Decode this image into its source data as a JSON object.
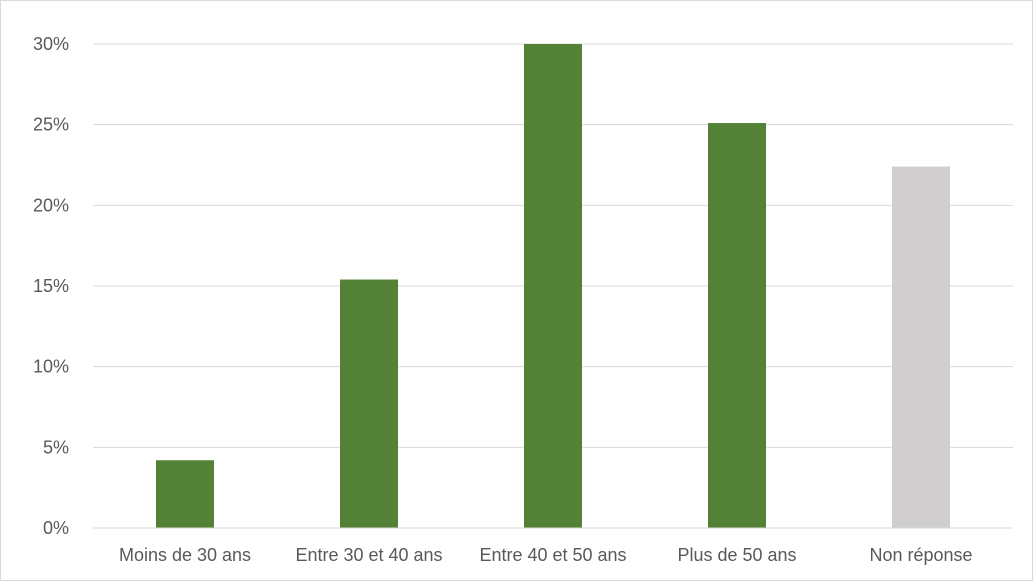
{
  "chart_data": {
    "type": "bar",
    "title": "",
    "xlabel": "",
    "ylabel": "",
    "categories": [
      "Moins de 30 ans",
      "Entre 30 et 40 ans",
      "Entre 40 et 50 ans",
      "Plus de 50 ans",
      "Non réponse"
    ],
    "values": [
      4.2,
      15.4,
      30.0,
      25.1,
      22.4
    ],
    "bar_colors": [
      "#538135",
      "#538135",
      "#538135",
      "#538135",
      "#d0cece"
    ],
    "ylim": [
      0,
      30
    ],
    "yticks": [
      0,
      5,
      10,
      15,
      20,
      25,
      30
    ],
    "ytick_labels": [
      "0%",
      "5%",
      "10%",
      "15%",
      "20%",
      "25%",
      "30%"
    ],
    "grid": true,
    "legend": "none"
  }
}
